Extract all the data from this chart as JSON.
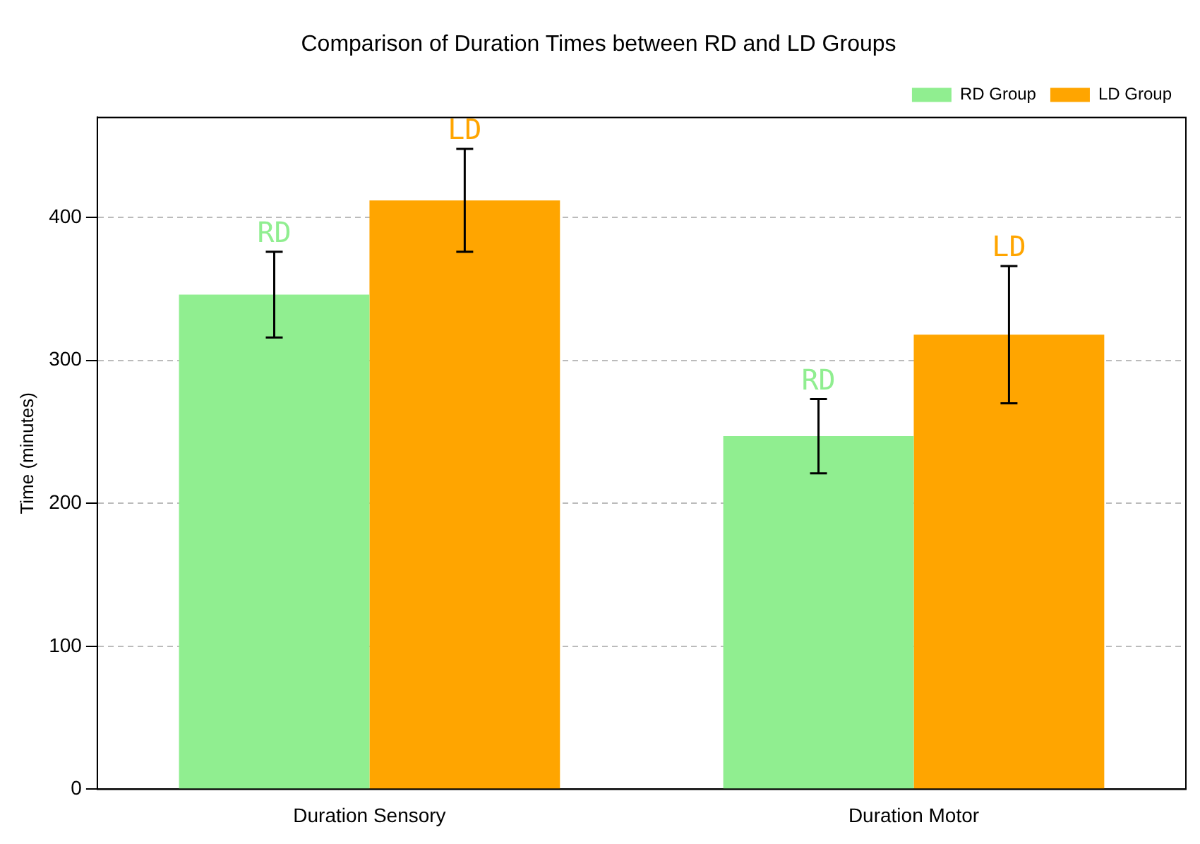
{
  "chart_data": {
    "type": "bar",
    "title": "Comparison of Duration Times between RD and LD Groups",
    "ylabel": "Time (minutes)",
    "categories": [
      "Duration Sensory",
      "Duration Motor"
    ],
    "series": [
      {
        "name": "RD Group",
        "color": "#90ee90",
        "values": [
          346,
          247
        ],
        "errors": [
          30,
          26
        ],
        "value_labels": [
          "RD",
          "RD"
        ]
      },
      {
        "name": "LD Group",
        "color": "#ffa500",
        "values": [
          412,
          318
        ],
        "errors": [
          36,
          48
        ],
        "value_labels": [
          "LD",
          "LD"
        ]
      }
    ],
    "ylim": [
      0,
      470
    ],
    "yticks": [
      0,
      100,
      200,
      300,
      400
    ],
    "grid": "y",
    "legend": "top right"
  }
}
